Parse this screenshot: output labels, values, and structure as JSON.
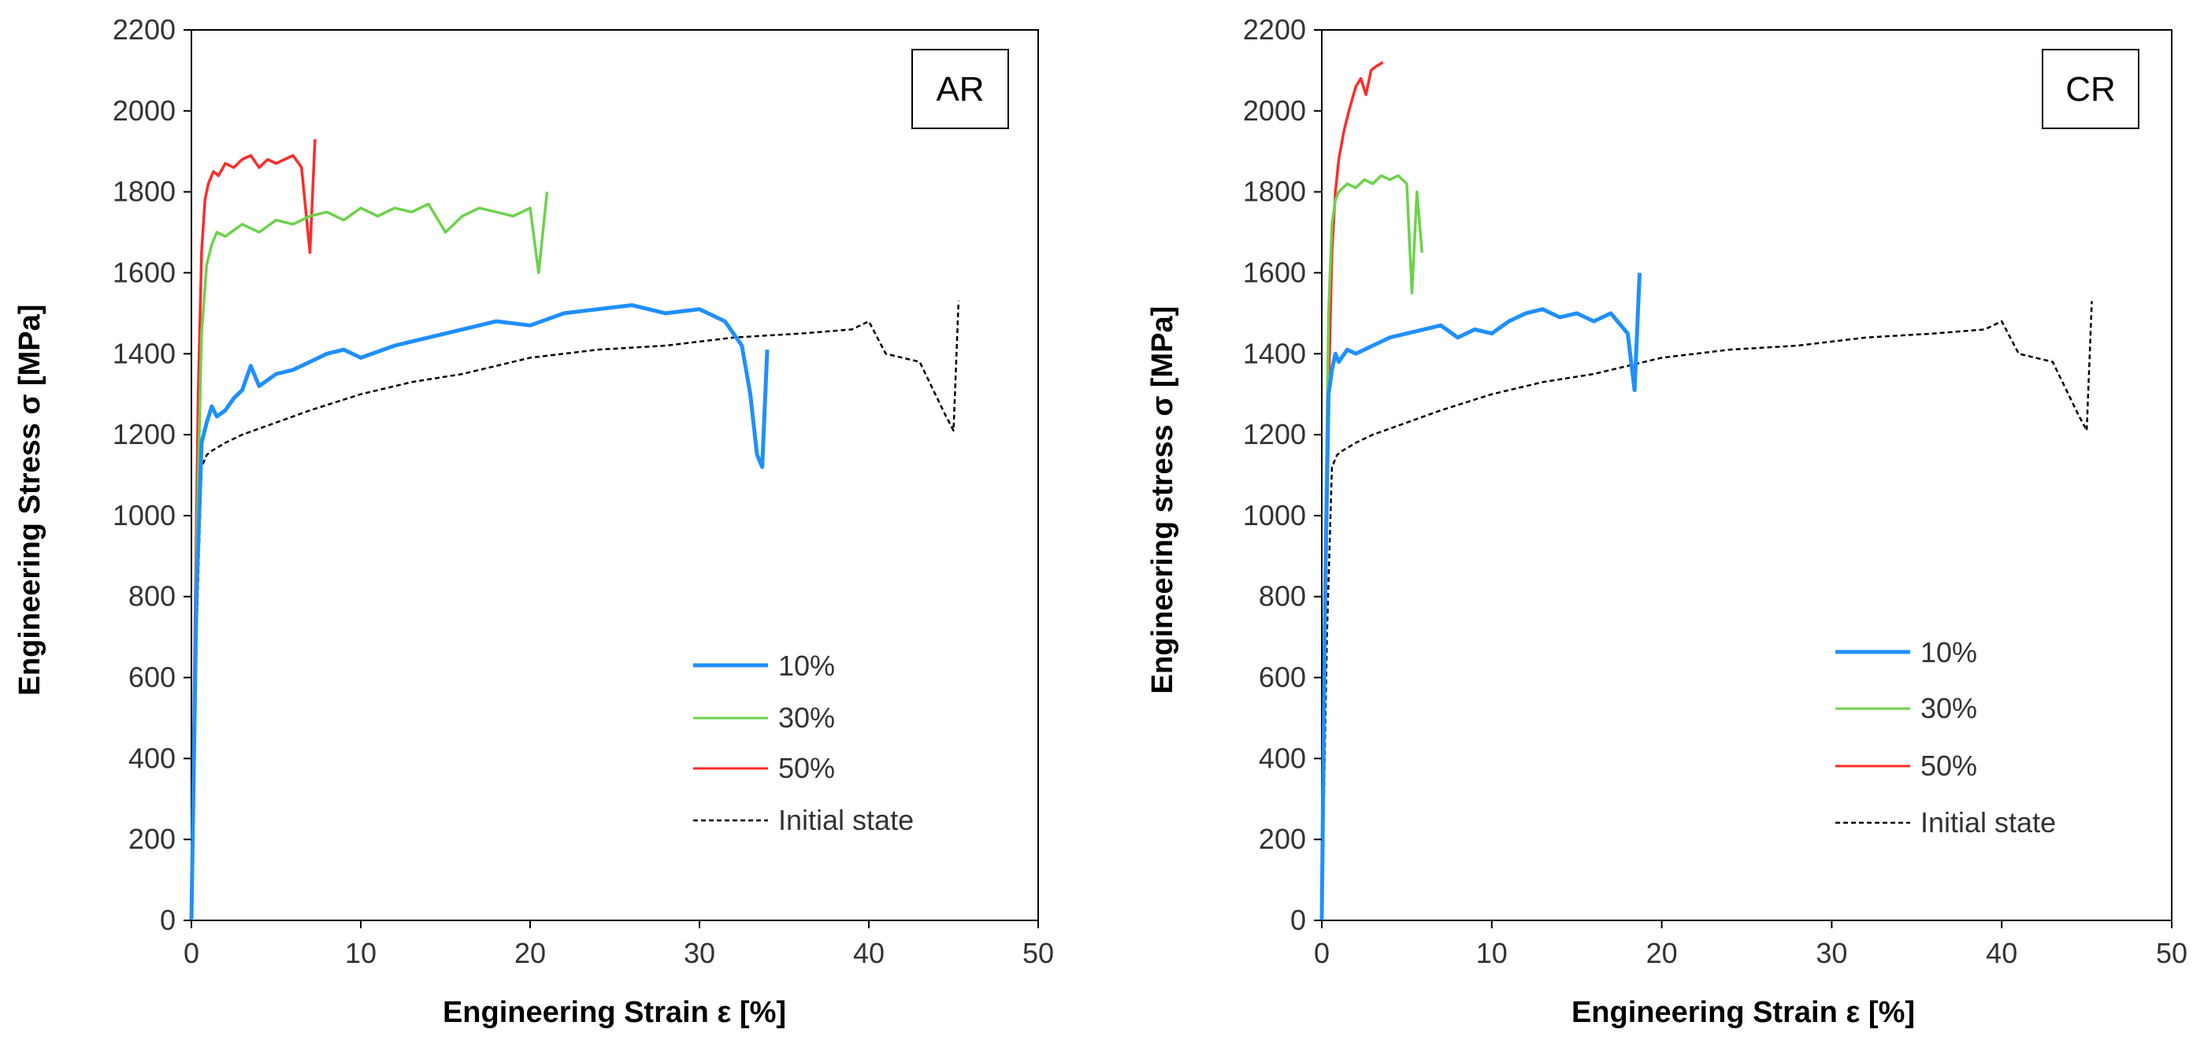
{
  "chart_data": [
    {
      "type": "line",
      "title": "AR",
      "xlabel": "Engineering Strain ε [%]",
      "ylabel": "Engineering  Stress σ [MPa]",
      "xlim": [
        0,
        50
      ],
      "ylim": [
        0,
        2200
      ],
      "xticks": [
        "0",
        "10",
        "20",
        "30",
        "40",
        "50"
      ],
      "yticks": [
        "0",
        "200",
        "400",
        "600",
        "800",
        "1000",
        "1200",
        "1400",
        "1600",
        "1800",
        "2000",
        "2200"
      ],
      "legend": [
        "10%",
        "30%",
        "50%",
        "Initial state"
      ],
      "series": [
        {
          "name": "10%",
          "color": "#1f8fff",
          "dash": "solid",
          "x": [
            0,
            0.3,
            0.6,
            0.9,
            1.2,
            1.5,
            2.0,
            2.5,
            3.0,
            3.5,
            4.0,
            5.0,
            6.0,
            7.0,
            8.0,
            9.0,
            10.0,
            12.0,
            14.0,
            16.0,
            18.0,
            20.0,
            22.0,
            24.0,
            26.0,
            28.0,
            30.0,
            31.5,
            32.5,
            33.0,
            33.4,
            33.7,
            34.0
          ],
          "y": [
            0,
            800,
            1180,
            1230,
            1270,
            1245,
            1260,
            1290,
            1310,
            1370,
            1320,
            1350,
            1360,
            1380,
            1400,
            1410,
            1390,
            1420,
            1440,
            1460,
            1480,
            1470,
            1500,
            1510,
            1520,
            1500,
            1510,
            1480,
            1420,
            1300,
            1150,
            1120,
            1410
          ]
        },
        {
          "name": "30%",
          "color": "#6cd24a",
          "dash": "solid",
          "x": [
            0,
            0.3,
            0.6,
            0.9,
            1.2,
            1.5,
            2.0,
            3.0,
            4.0,
            5.0,
            6.0,
            7.0,
            8.0,
            9.0,
            10.0,
            11.0,
            12.0,
            13.0,
            14.0,
            15.0,
            16.0,
            17.0,
            18.0,
            19.0,
            20.0,
            20.5,
            21.0
          ],
          "y": [
            0,
            900,
            1450,
            1620,
            1670,
            1700,
            1690,
            1720,
            1700,
            1730,
            1720,
            1740,
            1750,
            1730,
            1760,
            1740,
            1760,
            1750,
            1770,
            1700,
            1740,
            1760,
            1750,
            1740,
            1760,
            1600,
            1800
          ]
        },
        {
          "name": "50%",
          "color": "#ff2a2a",
          "dash": "solid",
          "x": [
            0,
            0.2,
            0.4,
            0.6,
            0.8,
            1.0,
            1.3,
            1.6,
            2.0,
            2.5,
            3.0,
            3.5,
            4.0,
            4.5,
            5.0,
            5.5,
            6.0,
            6.5,
            7.0,
            7.3
          ],
          "y": [
            0,
            700,
            1300,
            1650,
            1780,
            1820,
            1850,
            1840,
            1870,
            1860,
            1880,
            1890,
            1860,
            1880,
            1870,
            1880,
            1890,
            1860,
            1650,
            1930
          ]
        },
        {
          "name": "Initial state",
          "color": "#000000",
          "dash": "dashed",
          "x": [
            0,
            0.3,
            0.6,
            0.9,
            1.2,
            2.0,
            3.0,
            5.0,
            7.0,
            10.0,
            13.0,
            16.0,
            20.0,
            24.0,
            28.0,
            32.0,
            36.0,
            39.0,
            40.0,
            41.0,
            43.0,
            44.5,
            45.0,
            45.3
          ],
          "y": [
            0,
            700,
            1120,
            1150,
            1160,
            1180,
            1200,
            1230,
            1260,
            1300,
            1330,
            1350,
            1390,
            1410,
            1420,
            1440,
            1450,
            1460,
            1480,
            1400,
            1380,
            1250,
            1210,
            1530
          ]
        }
      ]
    },
    {
      "type": "line",
      "title": "CR",
      "xlabel": "Engineering Strain ε [%]",
      "ylabel": "Engineering  stress σ [MPa]",
      "xlim": [
        0,
        50
      ],
      "ylim": [
        0,
        2200
      ],
      "xticks": [
        "0",
        "10",
        "20",
        "30",
        "40",
        "50"
      ],
      "yticks": [
        "0",
        "200",
        "400",
        "600",
        "800",
        "1000",
        "1200",
        "1400",
        "1600",
        "1800",
        "2000",
        "2200"
      ],
      "legend": [
        "10%",
        "30%",
        "50%",
        "Initial state"
      ],
      "series": [
        {
          "name": "10%",
          "color": "#1f8fff",
          "dash": "solid",
          "x": [
            0,
            0.2,
            0.4,
            0.6,
            0.8,
            1.0,
            1.5,
            2.0,
            3.0,
            4.0,
            5.0,
            6.0,
            7.0,
            8.0,
            9.0,
            10.0,
            11.0,
            12.0,
            13.0,
            14.0,
            15.0,
            16.0,
            17.0,
            18.0,
            18.4,
            18.7
          ],
          "y": [
            0,
            800,
            1300,
            1360,
            1400,
            1380,
            1410,
            1400,
            1420,
            1440,
            1450,
            1460,
            1470,
            1440,
            1460,
            1450,
            1480,
            1500,
            1510,
            1490,
            1500,
            1480,
            1500,
            1450,
            1310,
            1600
          ]
        },
        {
          "name": "30%",
          "color": "#6cd24a",
          "dash": "solid",
          "x": [
            0,
            0.2,
            0.4,
            0.6,
            0.8,
            1.0,
            1.5,
            2.0,
            2.5,
            3.0,
            3.5,
            4.0,
            4.5,
            5.0,
            5.3,
            5.6,
            5.9
          ],
          "y": [
            0,
            900,
            1500,
            1720,
            1780,
            1800,
            1820,
            1810,
            1830,
            1820,
            1840,
            1830,
            1840,
            1820,
            1550,
            1800,
            1650
          ]
        },
        {
          "name": "50%",
          "color": "#ff2a2a",
          "dash": "solid",
          "x": [
            0,
            0.2,
            0.4,
            0.6,
            0.8,
            1.0,
            1.3,
            1.6,
            2.0,
            2.3,
            2.6,
            2.9,
            3.2,
            3.6
          ],
          "y": [
            0,
            700,
            1300,
            1650,
            1800,
            1880,
            1950,
            2000,
            2060,
            2080,
            2040,
            2100,
            2110,
            2120
          ]
        },
        {
          "name": "Initial state",
          "color": "#000000",
          "dash": "dashed",
          "x": [
            0,
            0.3,
            0.6,
            0.9,
            1.2,
            2.0,
            3.0,
            5.0,
            7.0,
            10.0,
            13.0,
            16.0,
            20.0,
            24.0,
            28.0,
            32.0,
            36.0,
            39.0,
            40.0,
            41.0,
            43.0,
            44.5,
            45.0,
            45.3
          ],
          "y": [
            0,
            700,
            1120,
            1150,
            1160,
            1180,
            1200,
            1230,
            1260,
            1300,
            1330,
            1350,
            1390,
            1410,
            1420,
            1440,
            1450,
            1460,
            1480,
            1400,
            1380,
            1250,
            1210,
            1530
          ]
        }
      ]
    }
  ]
}
